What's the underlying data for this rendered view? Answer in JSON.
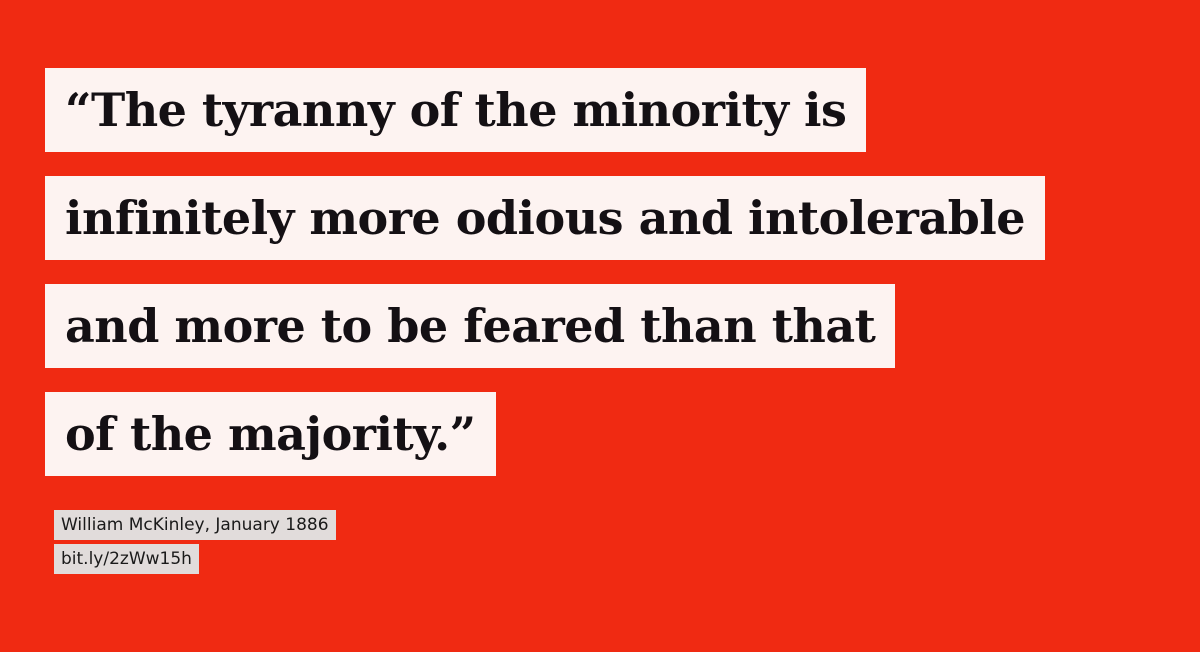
{
  "quote": {
    "lines": [
      "“The tyranny of the minority is",
      "infinitely more odious and intolerable",
      "and more to be feared than that",
      "of the majority.”"
    ]
  },
  "attribution": {
    "author": "William McKinley, January 1886",
    "link": "bit.ly/2zWw15h"
  },
  "colors": {
    "background": "#f02a12",
    "quote_highlight": "#fdf3f1",
    "attribution_highlight": "#e1dcdb"
  }
}
